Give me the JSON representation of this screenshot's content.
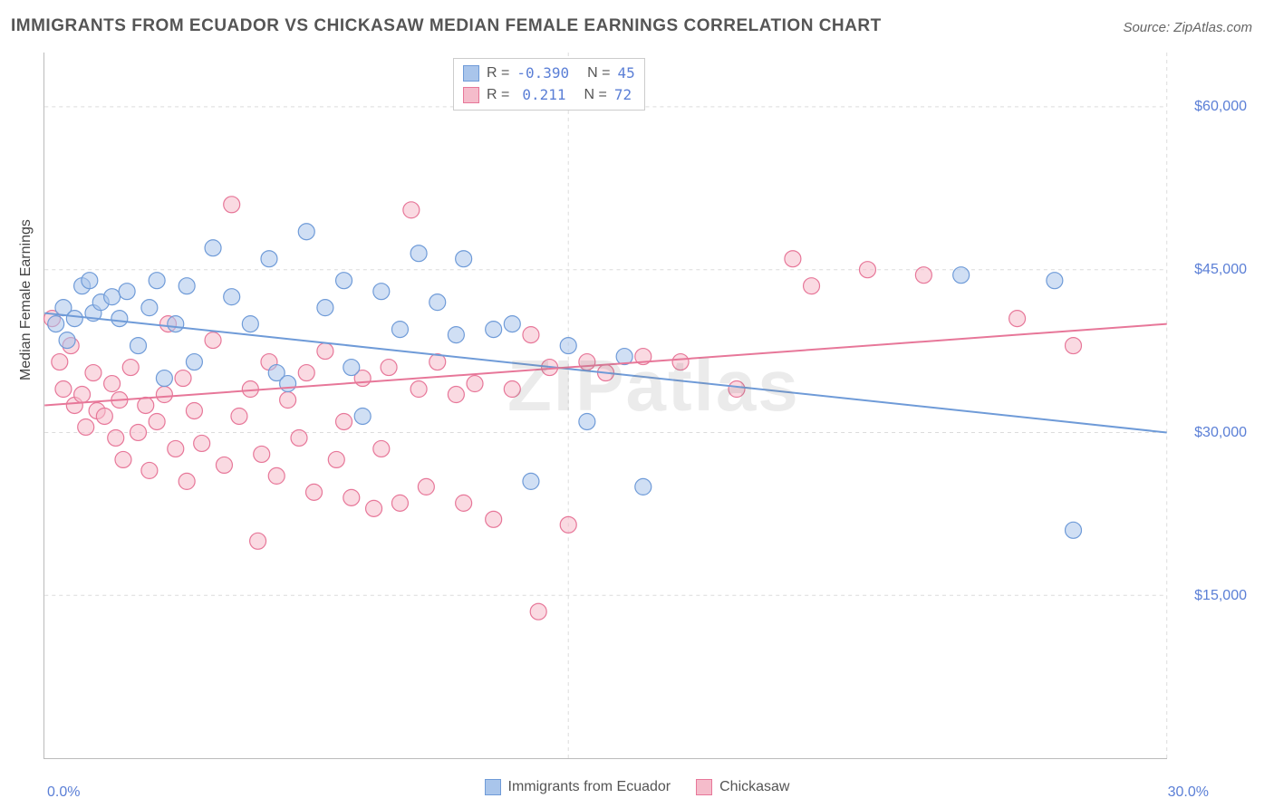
{
  "title": "IMMIGRANTS FROM ECUADOR VS CHICKASAW MEDIAN FEMALE EARNINGS CORRELATION CHART",
  "source_label": "Source: ZipAtlas.com",
  "watermark": "ZIPatlas",
  "y_axis_label": "Median Female Earnings",
  "chart": {
    "type": "scatter",
    "background_color": "#ffffff",
    "grid_color": "#dcdcdc",
    "axis_color": "#bbbbbb",
    "xlim": [
      0,
      30
    ],
    "ylim": [
      0,
      65000
    ],
    "x_ticks": [
      0,
      30
    ],
    "x_tick_labels": [
      "0.0%",
      "30.0%"
    ],
    "y_ticks": [
      15000,
      30000,
      45000,
      60000
    ],
    "y_tick_labels": [
      "$15,000",
      "$30,000",
      "$45,000",
      "$60,000"
    ],
    "y_tick_color": "#5b7fd6",
    "x_tick_color": "#5b7fd6",
    "marker_radius": 9,
    "marker_opacity": 0.55,
    "trend_line_width": 2,
    "series": [
      {
        "name": "Immigrants from Ecuador",
        "color_fill": "#a9c5eb",
        "color_stroke": "#6f9bd8",
        "r_value": "-0.390",
        "n_value": "45",
        "trend": {
          "x1": 0,
          "y1": 41000,
          "x2": 30,
          "y2": 30000
        },
        "points": [
          [
            0.3,
            40000
          ],
          [
            0.5,
            41500
          ],
          [
            0.6,
            38500
          ],
          [
            0.8,
            40500
          ],
          [
            1.0,
            43500
          ],
          [
            1.2,
            44000
          ],
          [
            1.3,
            41000
          ],
          [
            1.5,
            42000
          ],
          [
            1.8,
            42500
          ],
          [
            2.0,
            40500
          ],
          [
            2.2,
            43000
          ],
          [
            2.5,
            38000
          ],
          [
            2.8,
            41500
          ],
          [
            3.0,
            44000
          ],
          [
            3.2,
            35000
          ],
          [
            3.5,
            40000
          ],
          [
            3.8,
            43500
          ],
          [
            4.0,
            36500
          ],
          [
            4.5,
            47000
          ],
          [
            5.0,
            42500
          ],
          [
            5.5,
            40000
          ],
          [
            6.0,
            46000
          ],
          [
            6.2,
            35500
          ],
          [
            6.5,
            34500
          ],
          [
            7.0,
            48500
          ],
          [
            7.5,
            41500
          ],
          [
            8.0,
            44000
          ],
          [
            8.2,
            36000
          ],
          [
            8.5,
            31500
          ],
          [
            9.0,
            43000
          ],
          [
            9.5,
            39500
          ],
          [
            10.0,
            46500
          ],
          [
            10.5,
            42000
          ],
          [
            11.0,
            39000
          ],
          [
            11.2,
            46000
          ],
          [
            12.0,
            39500
          ],
          [
            12.5,
            40000
          ],
          [
            13.0,
            25500
          ],
          [
            14.0,
            38000
          ],
          [
            14.5,
            31000
          ],
          [
            15.5,
            37000
          ],
          [
            16.0,
            25000
          ],
          [
            24.5,
            44500
          ],
          [
            27.0,
            44000
          ],
          [
            27.5,
            21000
          ]
        ]
      },
      {
        "name": "Chickasaw",
        "color_fill": "#f5bccb",
        "color_stroke": "#e77799",
        "r_value": "0.211",
        "n_value": "72",
        "trend": {
          "x1": 0,
          "y1": 32500,
          "x2": 30,
          "y2": 40000
        },
        "points": [
          [
            0.2,
            40500
          ],
          [
            0.4,
            36500
          ],
          [
            0.5,
            34000
          ],
          [
            0.7,
            38000
          ],
          [
            0.8,
            32500
          ],
          [
            1.0,
            33500
          ],
          [
            1.1,
            30500
          ],
          [
            1.3,
            35500
          ],
          [
            1.4,
            32000
          ],
          [
            1.6,
            31500
          ],
          [
            1.8,
            34500
          ],
          [
            1.9,
            29500
          ],
          [
            2.0,
            33000
          ],
          [
            2.1,
            27500
          ],
          [
            2.3,
            36000
          ],
          [
            2.5,
            30000
          ],
          [
            2.7,
            32500
          ],
          [
            2.8,
            26500
          ],
          [
            3.0,
            31000
          ],
          [
            3.2,
            33500
          ],
          [
            3.3,
            40000
          ],
          [
            3.5,
            28500
          ],
          [
            3.7,
            35000
          ],
          [
            3.8,
            25500
          ],
          [
            4.0,
            32000
          ],
          [
            4.2,
            29000
          ],
          [
            4.5,
            38500
          ],
          [
            4.8,
            27000
          ],
          [
            5.0,
            51000
          ],
          [
            5.2,
            31500
          ],
          [
            5.5,
            34000
          ],
          [
            5.7,
            20000
          ],
          [
            5.8,
            28000
          ],
          [
            6.0,
            36500
          ],
          [
            6.2,
            26000
          ],
          [
            6.5,
            33000
          ],
          [
            6.8,
            29500
          ],
          [
            7.0,
            35500
          ],
          [
            7.2,
            24500
          ],
          [
            7.5,
            37500
          ],
          [
            7.8,
            27500
          ],
          [
            8.0,
            31000
          ],
          [
            8.2,
            24000
          ],
          [
            8.5,
            35000
          ],
          [
            8.8,
            23000
          ],
          [
            9.0,
            28500
          ],
          [
            9.2,
            36000
          ],
          [
            9.5,
            23500
          ],
          [
            9.8,
            50500
          ],
          [
            10.0,
            34000
          ],
          [
            10.2,
            25000
          ],
          [
            10.5,
            36500
          ],
          [
            11.0,
            33500
          ],
          [
            11.2,
            23500
          ],
          [
            11.5,
            34500
          ],
          [
            12.0,
            22000
          ],
          [
            12.5,
            34000
          ],
          [
            13.0,
            39000
          ],
          [
            13.2,
            13500
          ],
          [
            13.5,
            36000
          ],
          [
            14.0,
            21500
          ],
          [
            14.5,
            36500
          ],
          [
            15.0,
            35500
          ],
          [
            16.0,
            37000
          ],
          [
            17.0,
            36500
          ],
          [
            18.5,
            34000
          ],
          [
            20.0,
            46000
          ],
          [
            20.5,
            43500
          ],
          [
            22.0,
            45000
          ],
          [
            23.5,
            44500
          ],
          [
            26.0,
            40500
          ],
          [
            27.5,
            38000
          ]
        ]
      }
    ]
  },
  "legend_top": {
    "r_label": "R =",
    "n_label": "N ="
  },
  "legend_bottom": {
    "items": [
      "Immigrants from Ecuador",
      "Chickasaw"
    ]
  }
}
